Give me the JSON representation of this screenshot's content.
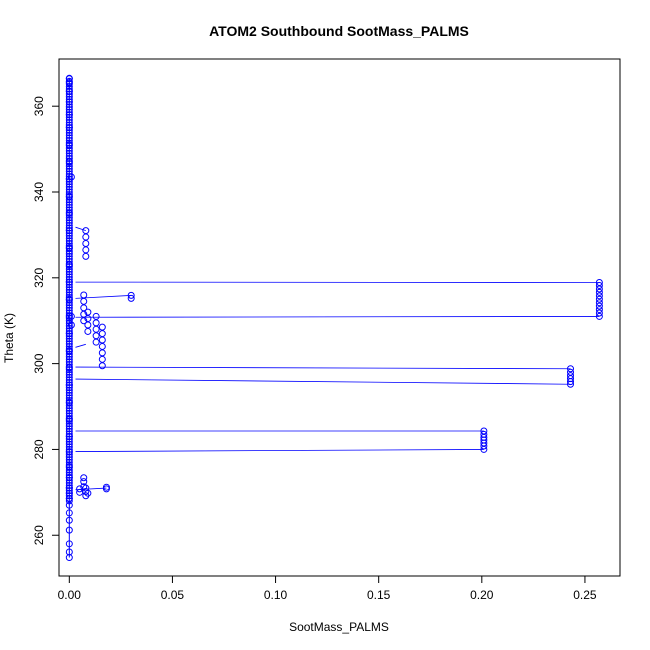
{
  "chart_data": {
    "type": "scatter",
    "title": "ATOM2 Southbound SootMass_PALMS",
    "xlabel": "SootMass_PALMS",
    "ylabel": "Theta (K)",
    "xlim": [
      -0.005,
      0.267
    ],
    "ylim": [
      250.5,
      371.0
    ],
    "xticks": [
      0.0,
      0.05,
      0.1,
      0.15,
      0.2,
      0.25
    ],
    "xtick_labels": [
      "0.00",
      "0.05",
      "0.10",
      "0.15",
      "0.20",
      "0.25"
    ],
    "yticks": [
      260,
      280,
      300,
      320,
      340,
      360
    ],
    "ytick_labels": [
      "260",
      "280",
      "300",
      "320",
      "340",
      "360"
    ],
    "grid": false,
    "color": "#0000ff",
    "series": [
      {
        "values": [
          [
            0.0,
            254.8
          ],
          [
            0.0,
            256.1
          ],
          [
            0.0,
            258.0
          ],
          [
            0.0,
            261.2
          ],
          [
            0.0,
            263.5
          ],
          [
            0.0,
            265.2
          ],
          [
            0.0,
            267.0
          ],
          [
            0.0,
            268.5
          ],
          [
            0.0,
            269.8
          ],
          [
            0.0,
            271.0
          ],
          [
            0.0,
            273.5
          ],
          [
            0.0,
            276.0
          ],
          [
            0.0,
            279.5
          ],
          [
            0.0,
            283.0
          ],
          [
            0.0,
            287.0
          ],
          [
            0.0,
            291.0
          ],
          [
            0.0,
            295.0
          ],
          [
            0.0,
            299.0
          ],
          [
            0.0,
            303.0
          ],
          [
            0.0,
            307.0
          ],
          [
            0.0,
            311.0
          ],
          [
            0.0,
            315.0
          ],
          [
            0.0,
            319.0
          ],
          [
            0.0,
            323.0
          ],
          [
            0.0,
            327.0
          ],
          [
            0.0,
            331.0
          ],
          [
            0.0,
            335.0
          ],
          [
            0.0,
            339.0
          ],
          [
            0.0,
            343.0
          ],
          [
            0.0,
            347.0
          ],
          [
            0.0,
            351.0
          ],
          [
            0.0,
            355.0
          ],
          [
            0.0,
            358.0
          ],
          [
            0.0,
            361.0
          ],
          [
            0.0,
            363.5
          ],
          [
            0.0,
            365.5
          ],
          [
            0.0,
            366.5
          ],
          [
            0.001,
            343.5
          ],
          [
            0.001,
            309.0
          ],
          [
            0.001,
            311.0
          ],
          [
            0.005,
            270.0
          ],
          [
            0.005,
            270.8
          ],
          [
            0.007,
            271.3
          ],
          [
            0.007,
            272.5
          ],
          [
            0.007,
            273.4
          ],
          [
            0.008,
            269.2
          ],
          [
            0.008,
            270.2
          ],
          [
            0.008,
            271.0
          ],
          [
            0.009,
            269.8
          ],
          [
            0.018,
            270.8
          ],
          [
            0.018,
            271.2
          ],
          [
            0.007,
            310.0
          ],
          [
            0.007,
            311.5
          ],
          [
            0.007,
            313.0
          ],
          [
            0.007,
            314.5
          ],
          [
            0.007,
            316.0
          ],
          [
            0.008,
            325.0
          ],
          [
            0.008,
            326.5
          ],
          [
            0.008,
            328.0
          ],
          [
            0.008,
            329.5
          ],
          [
            0.008,
            331.0
          ],
          [
            0.009,
            307.5
          ],
          [
            0.009,
            309.0
          ],
          [
            0.009,
            310.5
          ],
          [
            0.009,
            312.0
          ],
          [
            0.013,
            305.0
          ],
          [
            0.013,
            306.5
          ],
          [
            0.013,
            308.0
          ],
          [
            0.013,
            309.5
          ],
          [
            0.013,
            311.0
          ],
          [
            0.016,
            299.5
          ],
          [
            0.016,
            301.0
          ],
          [
            0.016,
            302.5
          ],
          [
            0.016,
            304.0
          ],
          [
            0.016,
            305.5
          ],
          [
            0.016,
            307.0
          ],
          [
            0.016,
            308.5
          ],
          [
            0.03,
            315.2
          ],
          [
            0.03,
            315.9
          ],
          [
            0.201,
            280.0
          ],
          [
            0.201,
            280.8
          ],
          [
            0.201,
            281.5
          ],
          [
            0.201,
            282.2
          ],
          [
            0.201,
            282.8
          ],
          [
            0.201,
            283.5
          ],
          [
            0.201,
            284.3
          ],
          [
            0.243,
            295.2
          ],
          [
            0.243,
            295.8
          ],
          [
            0.243,
            296.5
          ],
          [
            0.243,
            297.2
          ],
          [
            0.243,
            298.0
          ],
          [
            0.243,
            298.8
          ],
          [
            0.257,
            311.0
          ],
          [
            0.257,
            311.8
          ],
          [
            0.257,
            312.6
          ],
          [
            0.257,
            313.4
          ],
          [
            0.257,
            314.2
          ],
          [
            0.257,
            315.0
          ],
          [
            0.257,
            315.8
          ],
          [
            0.257,
            316.6
          ],
          [
            0.257,
            317.4
          ],
          [
            0.257,
            318.2
          ],
          [
            0.257,
            318.9
          ]
        ]
      }
    ],
    "connector_lines": [
      [
        [
          0.003,
          319.0
        ],
        [
          0.257,
          318.9
        ]
      ],
      [
        [
          0.003,
          310.8
        ],
        [
          0.257,
          311.0
        ]
      ],
      [
        [
          0.003,
          299.2
        ],
        [
          0.243,
          298.8
        ]
      ],
      [
        [
          0.003,
          296.4
        ],
        [
          0.243,
          295.2
        ]
      ],
      [
        [
          0.003,
          284.3
        ],
        [
          0.201,
          284.3
        ]
      ],
      [
        [
          0.003,
          279.5
        ],
        [
          0.201,
          280.0
        ]
      ],
      [
        [
          0.003,
          315.2
        ],
        [
          0.03,
          315.9
        ]
      ],
      [
        [
          0.003,
          303.8
        ],
        [
          0.008,
          304.5
        ]
      ],
      [
        [
          0.003,
          270.6
        ],
        [
          0.018,
          271.0
        ]
      ],
      [
        [
          0.003,
          331.8
        ],
        [
          0.008,
          331.0
        ]
      ]
    ]
  }
}
